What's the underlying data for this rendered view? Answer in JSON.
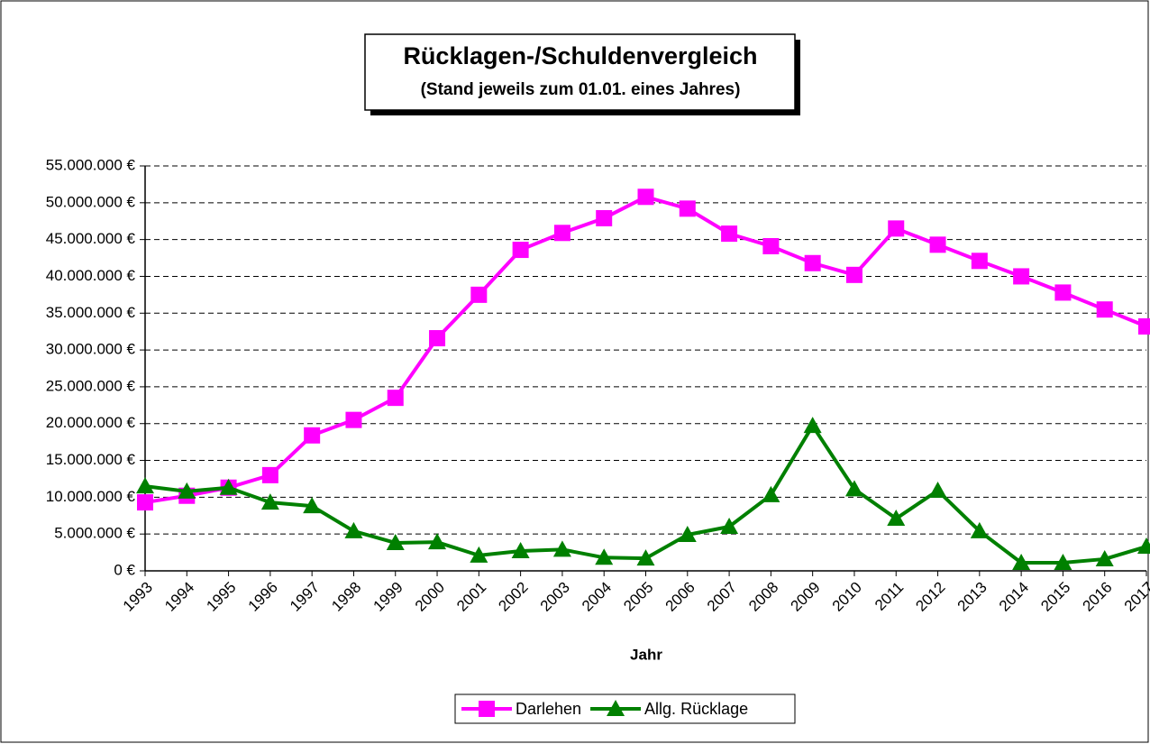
{
  "chart_data": {
    "type": "line",
    "title": "Rücklagen-/Schuldenvergleich",
    "subtitle": "(Stand jeweils zum 01.01. eines Jahres)",
    "x_label": "Jahr",
    "categories": [
      "1993",
      "1994",
      "1995",
      "1996",
      "1997",
      "1998",
      "1999",
      "2000",
      "2001",
      "2002",
      "2003",
      "2004",
      "2005",
      "2006",
      "2007",
      "2008",
      "2009",
      "2010",
      "2011",
      "2012",
      "2013",
      "2014",
      "2015",
      "2016",
      "2017"
    ],
    "series": [
      {
        "name": "Darlehen",
        "color": "#ff00ff",
        "marker": "square",
        "values": [
          9300000,
          10200000,
          11300000,
          13000000,
          18400000,
          20500000,
          23500000,
          31600000,
          37500000,
          43600000,
          45900000,
          47900000,
          50800000,
          49200000,
          45800000,
          44100000,
          41800000,
          40200000,
          46500000,
          44300000,
          42100000,
          40000000,
          37800000,
          35500000,
          33200000
        ]
      },
      {
        "name": "Allg. Rücklage",
        "color": "#008000",
        "marker": "triangle",
        "values": [
          11500000,
          10800000,
          11300000,
          9300000,
          8800000,
          5400000,
          3800000,
          3900000,
          2100000,
          2700000,
          2900000,
          1800000,
          1700000,
          4900000,
          6000000,
          10300000,
          19700000,
          11100000,
          7100000,
          10900000,
          5400000,
          1100000,
          1100000,
          1600000,
          3300000
        ]
      }
    ],
    "ylim": [
      0,
      55000000
    ],
    "yticks": [
      {
        "value": 0,
        "label": "0 €"
      },
      {
        "value": 5000000,
        "label": "5.000.000 €"
      },
      {
        "value": 10000000,
        "label": "10.000.000 €"
      },
      {
        "value": 15000000,
        "label": "15.000.000 €"
      },
      {
        "value": 20000000,
        "label": "20.000.000 €"
      },
      {
        "value": 25000000,
        "label": "25.000.000 €"
      },
      {
        "value": 30000000,
        "label": "30.000.000 €"
      },
      {
        "value": 35000000,
        "label": "35.000.000 €"
      },
      {
        "value": 40000000,
        "label": "40.000.000 €"
      },
      {
        "value": 45000000,
        "label": "45.000.000 €"
      },
      {
        "value": 50000000,
        "label": "50.000.000 €"
      },
      {
        "value": 55000000,
        "label": "55.000.000 €"
      }
    ],
    "grid": true,
    "legend": "bottom"
  }
}
